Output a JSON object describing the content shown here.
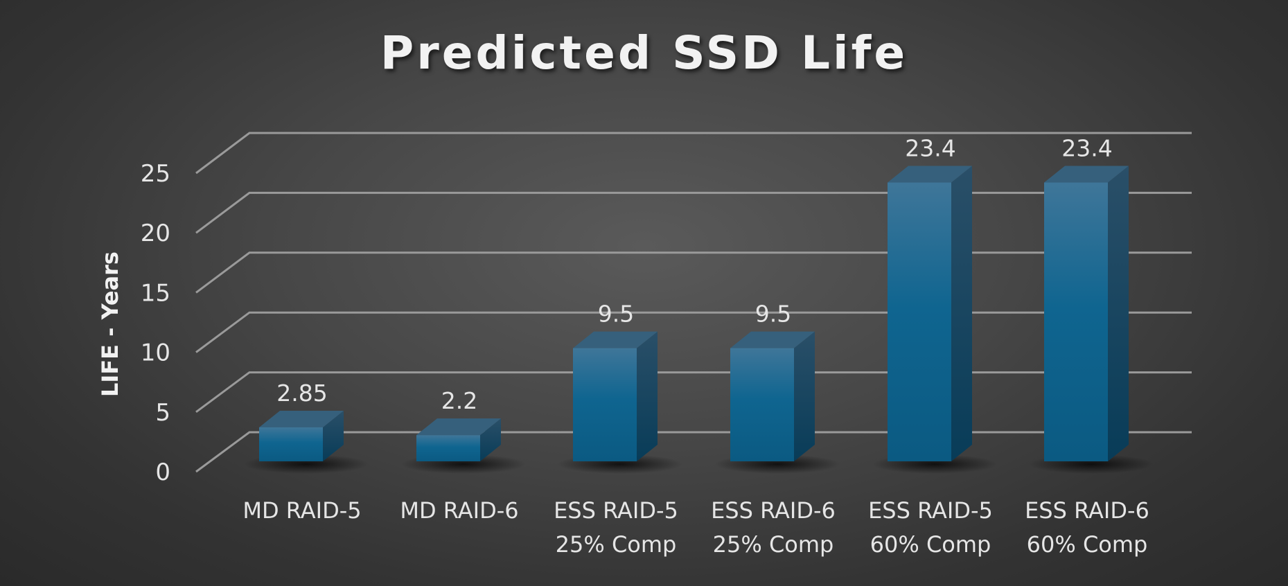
{
  "chart_data": {
    "type": "bar",
    "title": "Predicted SSD Life",
    "xlabel": "",
    "ylabel": "LIFE - Years",
    "ylim": [
      0,
      25
    ],
    "yticks": [
      0,
      5,
      10,
      15,
      20,
      25
    ],
    "categories": [
      [
        "MD RAID-5"
      ],
      [
        "MD RAID-6"
      ],
      [
        "ESS RAID-5",
        "25% Comp"
      ],
      [
        "ESS RAID-6",
        "25% Comp"
      ],
      [
        "ESS RAID-5",
        "60% Comp"
      ],
      [
        "ESS RAID-6",
        "60% Comp"
      ]
    ],
    "values": [
      2.85,
      2.2,
      9.5,
      9.5,
      23.4,
      23.4
    ],
    "data_labels": [
      "2.85",
      "2.2",
      "9.5",
      "9.5",
      "23.4",
      "23.4"
    ],
    "bar_color": "#0f6590",
    "grid": true
  }
}
